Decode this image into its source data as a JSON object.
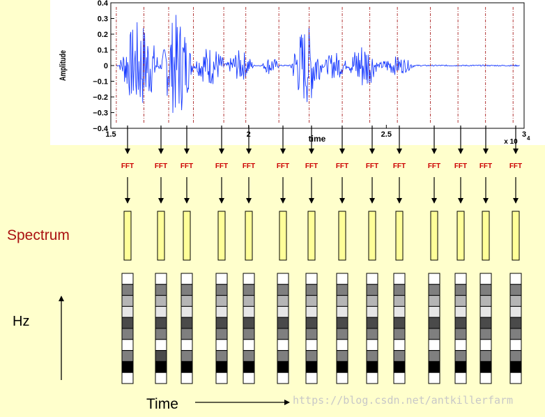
{
  "waveform": {
    "ylabel": "Amplitude",
    "xlabel": "time",
    "y_ticks": [
      "0.4",
      "0.3",
      "0.2",
      "0.1",
      "0",
      "−0.1",
      "−0.2",
      "−0.3",
      "−0.4"
    ],
    "x_ticks": [
      "1.5",
      "2",
      "2.5",
      "3"
    ],
    "x_multiplier": "x 10",
    "x_multiplier_exp": "4",
    "frame_positions_x10k": [
      1.52,
      1.62,
      1.71,
      1.8,
      1.91,
      1.99,
      2.11,
      2.22,
      2.34,
      2.44,
      2.54,
      2.66,
      2.76,
      2.86,
      2.96
    ]
  },
  "fft": {
    "label": "FFT",
    "label_color": "#cc0000",
    "frame_count": 14
  },
  "spectrum": {
    "label": "Spectrum",
    "bar_fill": "#ffff99"
  },
  "spectrogram": {
    "rows": 10,
    "columns": [
      [
        0,
        3,
        2,
        1,
        4,
        3,
        0,
        3,
        5,
        0
      ],
      [
        0,
        3,
        2,
        1,
        4,
        3,
        0,
        4,
        5,
        0
      ],
      [
        0,
        3,
        2,
        1,
        4,
        3,
        0,
        3,
        5,
        0
      ],
      [
        0,
        3,
        2,
        1,
        4,
        3,
        0,
        3,
        5,
        0
      ],
      [
        0,
        3,
        2,
        1,
        4,
        3,
        0,
        3,
        5,
        0
      ],
      [
        0,
        3,
        2,
        1,
        4,
        3,
        0,
        3,
        5,
        0
      ],
      [
        0,
        3,
        2,
        1,
        4,
        3,
        0,
        3,
        5,
        0
      ],
      [
        0,
        3,
        2,
        1,
        4,
        3,
        0,
        3,
        5,
        0
      ],
      [
        0,
        3,
        2,
        1,
        4,
        3,
        0,
        3,
        5,
        0
      ],
      [
        0,
        3,
        2,
        1,
        4,
        3,
        0,
        3,
        5,
        0
      ],
      [
        0,
        3,
        2,
        1,
        4,
        3,
        0,
        3,
        5,
        0
      ],
      [
        0,
        3,
        2,
        1,
        4,
        3,
        0,
        3,
        5,
        0
      ],
      [
        0,
        3,
        2,
        1,
        4,
        3,
        0,
        3,
        5,
        0
      ],
      [
        0,
        3,
        2,
        1,
        4,
        3,
        0,
        3,
        5,
        0
      ]
    ],
    "shades": [
      "#ffffff",
      "#e6e6e6",
      "#b5b5b5",
      "#7f7f7f",
      "#4a4a4a",
      "#000000"
    ]
  },
  "axes_labels": {
    "frequency": "Hz",
    "time": "Time"
  },
  "watermark": "https://blog.csdn.net/antkillerfarm"
}
